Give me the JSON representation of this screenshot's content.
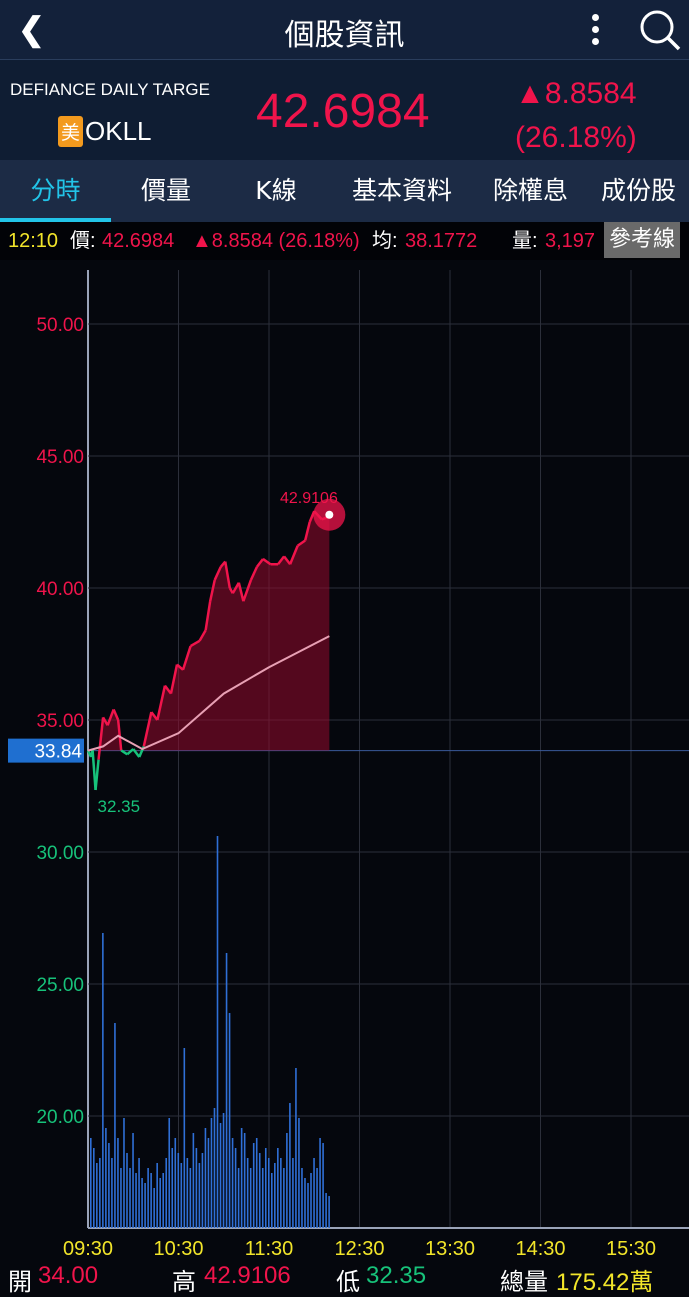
{
  "header": {
    "title": "個股資訊",
    "back_icon": "chevron-left-icon",
    "more_icon": "more-vertical-icon",
    "search_icon": "search-icon"
  },
  "stock": {
    "name": "DEFIANCE DAILY TARGE",
    "market_badge": "美",
    "code": "OKLL",
    "price": "42.6984",
    "change": "▲8.8584",
    "change_pct": "(26.18%)"
  },
  "tabs": [
    {
      "label": "分時",
      "active": true
    },
    {
      "label": "價量"
    },
    {
      "label": "K線"
    },
    {
      "label": "基本資料"
    },
    {
      "label": "除權息"
    },
    {
      "label": "成份股"
    }
  ],
  "quote_line": {
    "time": "12:10",
    "price_label": "價:",
    "price": "42.6984",
    "change": "▲8.8584 (26.18%)",
    "avg_label": "均:",
    "avg": "38.1772",
    "vol_label": "量:",
    "vol": "3,197",
    "ref_button": "參考線"
  },
  "colors": {
    "up": "#f0144b",
    "down": "#17c27a",
    "volume": "#2f6fd6",
    "avg_line": "#e8a0b4",
    "accent": "#22c4e8"
  },
  "chart_data": {
    "type": "line",
    "reference_price": 33.84,
    "reference_label": "33.84",
    "ylim": [
      15.8,
      52.0
    ],
    "y_ticks": [
      "50.00",
      "45.00",
      "40.00",
      "35.00",
      "30.00",
      "25.00",
      "20.00"
    ],
    "x_ticks": [
      "09:30",
      "10:30",
      "11:30",
      "12:30",
      "13:30",
      "14:30",
      "15:30"
    ],
    "high_label": "42.9106",
    "low_label": "32.35",
    "price_series": [
      [
        "09:30",
        33.84
      ],
      [
        "09:32",
        33.6
      ],
      [
        "09:33",
        33.9
      ],
      [
        "09:35",
        32.35
      ],
      [
        "09:37",
        33.5
      ],
      [
        "09:40",
        35.1
      ],
      [
        "09:43",
        34.8
      ],
      [
        "09:47",
        35.4
      ],
      [
        "09:50",
        35.0
      ],
      [
        "09:52",
        33.85
      ],
      [
        "09:56",
        33.7
      ],
      [
        "10:00",
        33.9
      ],
      [
        "10:04",
        33.6
      ],
      [
        "10:07",
        34.0
      ],
      [
        "10:12",
        35.3
      ],
      [
        "10:16",
        35.0
      ],
      [
        "10:21",
        36.3
      ],
      [
        "10:25",
        36.0
      ],
      [
        "10:29",
        37.1
      ],
      [
        "10:33",
        36.9
      ],
      [
        "10:38",
        37.8
      ],
      [
        "10:44",
        38.0
      ],
      [
        "10:48",
        38.4
      ],
      [
        "10:51",
        39.5
      ],
      [
        "10:54",
        40.3
      ],
      [
        "10:58",
        40.8
      ],
      [
        "11:01",
        41.0
      ],
      [
        "11:04",
        40.0
      ],
      [
        "11:06",
        39.8
      ],
      [
        "11:10",
        40.2
      ],
      [
        "11:13",
        39.5
      ],
      [
        "11:18",
        40.3
      ],
      [
        "11:22",
        40.8
      ],
      [
        "11:26",
        41.1
      ],
      [
        "11:31",
        40.9
      ],
      [
        "11:36",
        40.9
      ],
      [
        "11:40",
        41.2
      ],
      [
        "11:44",
        40.9
      ],
      [
        "11:49",
        41.6
      ],
      [
        "11:54",
        41.8
      ],
      [
        "11:57",
        42.5
      ],
      [
        "12:00",
        42.9106
      ],
      [
        "12:05",
        42.6
      ],
      [
        "12:10",
        42.6984
      ]
    ],
    "avg_series": [
      [
        "09:30",
        33.84
      ],
      [
        "09:40",
        34.0
      ],
      [
        "09:50",
        34.4
      ],
      [
        "10:06",
        33.9
      ],
      [
        "10:30",
        34.5
      ],
      [
        "11:00",
        36.0
      ],
      [
        "11:30",
        37.0
      ],
      [
        "12:10",
        38.1772
      ]
    ],
    "volume": [
      9000,
      8000,
      6500,
      7000,
      29500,
      10000,
      8500,
      7000,
      20500,
      9000,
      6000,
      11000,
      7500,
      6000,
      9500,
      5500,
      7000,
      5000,
      4500,
      6000,
      5500,
      4000,
      6500,
      5000,
      5500,
      7000,
      11000,
      8000,
      9000,
      7500,
      6500,
      18000,
      7000,
      6000,
      9500,
      8000,
      6500,
      7500,
      10000,
      9000,
      11000,
      12000,
      39200,
      10500,
      11500,
      27500,
      21500,
      9000,
      8000,
      6000,
      10000,
      9500,
      7000,
      6000,
      8500,
      9000,
      7500,
      6000,
      8000,
      7000,
      5500,
      6500,
      8000,
      7000,
      6000,
      9500,
      12500,
      7000,
      16000,
      11000,
      6000,
      5000,
      4500,
      5500,
      7000,
      6000,
      9000,
      8500,
      3500,
      3197
    ]
  },
  "summary": {
    "open_label": "開",
    "open": "34.00",
    "high_label": "高",
    "high": "42.9106",
    "low_label": "低",
    "low": "32.35",
    "total_label": "總量",
    "total": "175.42萬"
  }
}
